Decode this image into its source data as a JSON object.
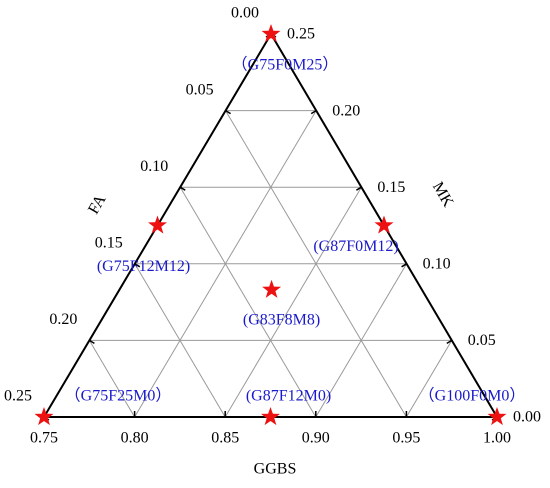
{
  "chart_data": {
    "type": "ternary",
    "ggbs_axis": {
      "title": "GGBS",
      "lim": [
        0.75,
        1.0
      ],
      "ticks": [
        0.75,
        {
          "value": 0.8,
          "label": "0.80"
        },
        0.85,
        {
          "value": 0.9,
          "label": "0.90"
        },
        0.95,
        {
          "value": 1.0,
          "label": "1.00"
        }
      ]
    },
    "fa_axis": {
      "title": "FA",
      "lim": [
        0,
        0.25
      ],
      "ticks": [
        {
          "value": 0,
          "label": "0.00"
        },
        0.05,
        {
          "value": 0.1,
          "label": "0.10"
        },
        0.15,
        {
          "value": 0.2,
          "label": "0.20"
        },
        0.25
      ]
    },
    "mk_axis": {
      "title": "MK",
      "lim": [
        0,
        0.25
      ],
      "ticks": [
        {
          "value": 0,
          "label": "0.00"
        },
        0.05,
        {
          "value": 0.1,
          "label": "0.10"
        },
        0.15,
        {
          "value": 0.2,
          "label": "0.20"
        },
        0.25
      ]
    },
    "grid": true,
    "color": "#ee1111",
    "label_color": "#1a1acc",
    "points": [
      {
        "label": "（G75F0M25）",
        "ggbs": 0.75,
        "fa": 0,
        "mk": 0.25
      },
      {
        "label": "(G75F12M12)",
        "ggbs": 0.75,
        "fa": 0.125,
        "mk": 0.125
      },
      {
        "label": "(G87F0M12)",
        "ggbs": 0.875,
        "fa": 0,
        "mk": 0.125
      },
      {
        "label": "(G83F8M8)",
        "ggbs": 0.833,
        "fa": 0.083,
        "mk": 0.083
      },
      {
        "label": "（G75F25M0）",
        "ggbs": 0.75,
        "fa": 0.25,
        "mk": 0
      },
      {
        "label": "(G87F12M0)",
        "ggbs": 0.875,
        "fa": 0.125,
        "mk": 0
      },
      {
        "label": "（G100F0M0）",
        "ggbs": 1.0,
        "fa": 0,
        "mk": 0
      }
    ]
  }
}
